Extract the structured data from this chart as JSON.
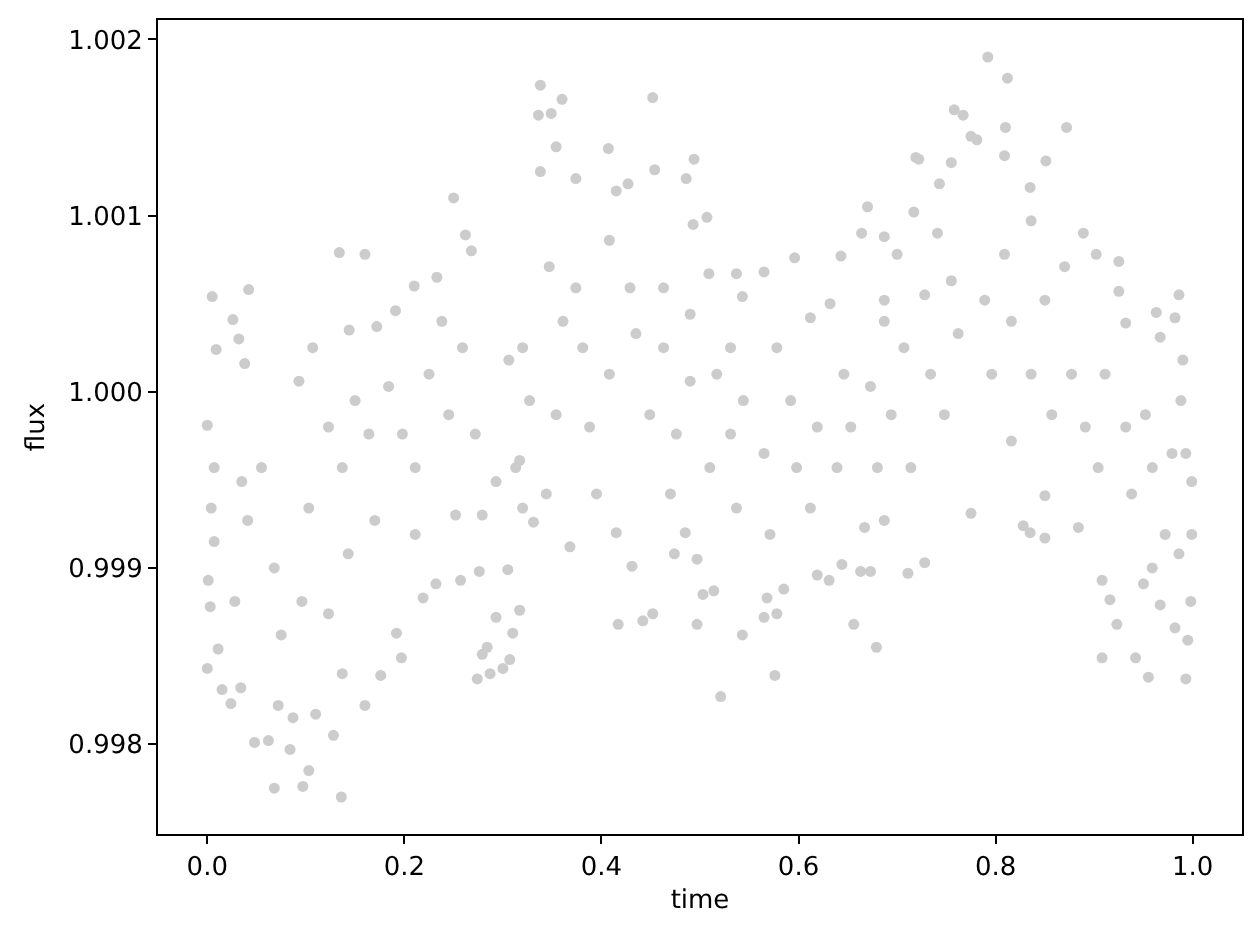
{
  "chart_data": {
    "type": "scatter",
    "xlabel": "time",
    "ylabel": "flux",
    "color": "#cccccc",
    "marker": "circle",
    "xlim": [
      -0.05,
      1.05
    ],
    "ylim": [
      0.99749,
      1.00211
    ],
    "xticks": [
      {
        "value": 0,
        "label": "0.0"
      },
      0.2,
      0.4,
      0.6,
      0.8,
      {
        "value": 1,
        "label": "1.0"
      }
    ],
    "yticks": [
      0.998,
      0.999,
      {
        "value": 1,
        "label": "1.000"
      },
      1.001,
      1.002
    ],
    "x": [
      0.005,
      0.042,
      0.026,
      0.009,
      0.032,
      0.038,
      0.0,
      0.134,
      0.16,
      0.25,
      0.262,
      0.268,
      0.144,
      0.107,
      0.093,
      0.191,
      0.21,
      0.233,
      0.172,
      0.136,
      0.068,
      0.097,
      0.103,
      0.048,
      0.062,
      0.084,
      0.128,
      0.024,
      0.015,
      0.034,
      0.0,
      0.011,
      0.072,
      0.087,
      0.11,
      0.16,
      0.176,
      0.197,
      0.192,
      0.137,
      0.274,
      0.287,
      0.3,
      0.307,
      0.279,
      0.284,
      0.31,
      0.293,
      0.219,
      0.232,
      0.257,
      0.276,
      0.305,
      0.007,
      0.004,
      0.007,
      0.001,
      0.003,
      0.035,
      0.041,
      0.028,
      0.055,
      0.068,
      0.075,
      0.096,
      0.103,
      0.123,
      0.137,
      0.143,
      0.123,
      0.15,
      0.164,
      0.17,
      0.184,
      0.198,
      0.211,
      0.211,
      0.225,
      0.238,
      0.245,
      0.252,
      0.259,
      0.272,
      0.279,
      0.293,
      0.306,
      0.317,
      0.32,
      0.338,
      0.336,
      0.349,
      0.36,
      0.354,
      0.452,
      0.407,
      0.454,
      0.494,
      0.486,
      0.507,
      0.493,
      0.338,
      0.374,
      0.415,
      0.427,
      0.67,
      0.664,
      0.687,
      0.643,
      0.596,
      0.565,
      0.537,
      0.509,
      0.543,
      0.463,
      0.612,
      0.632,
      0.578,
      0.531,
      0.521,
      0.576,
      0.543,
      0.417,
      0.442,
      0.452,
      0.497,
      0.565,
      0.578,
      0.656,
      0.679,
      0.503,
      0.514,
      0.568,
      0.585,
      0.317,
      0.368,
      0.415,
      0.431,
      0.474,
      0.485,
      0.497,
      0.47,
      0.395,
      0.331,
      0.344,
      0.619,
      0.631,
      0.663,
      0.673,
      0.644,
      0.667,
      0.32,
      0.327,
      0.313,
      0.347,
      0.361,
      0.354,
      0.381,
      0.374,
      0.388,
      0.408,
      0.408,
      0.429,
      0.435,
      0.449,
      0.463,
      0.476,
      0.49,
      0.49,
      0.51,
      0.517,
      0.531,
      0.537,
      0.544,
      0.565,
      0.571,
      0.592,
      0.598,
      0.612,
      0.619,
      0.639,
      0.646,
      0.653,
      0.673,
      0.68,
      0.687,
      0.792,
      0.812,
      0.758,
      0.767,
      0.775,
      0.781,
      0.719,
      0.722,
      0.81,
      0.872,
      0.851,
      0.809,
      0.755,
      0.743,
      0.835,
      0.717,
      0.889,
      0.902,
      0.925,
      0.925,
      0.986,
      0.982,
      0.963,
      0.967,
      0.932,
      0.99,
      0.988,
      0.7,
      0.741,
      0.836,
      0.87,
      0.993,
      0.955,
      0.942,
      0.908,
      0.923,
      0.711,
      0.728,
      0.775,
      0.828,
      0.835,
      0.85,
      0.908,
      0.916,
      0.967,
      0.982,
      0.995,
      0.998,
      0.95,
      0.687,
      0.85,
      0.884,
      0.999,
      0.999,
      0.993,
      0.959,
      0.687,
      0.707,
      0.694,
      0.728,
      0.734,
      0.714,
      0.755,
      0.762,
      0.748,
      0.789,
      0.796,
      0.809,
      0.816,
      0.816,
      0.836,
      0.85,
      0.857,
      0.877,
      0.891,
      0.904,
      0.911,
      0.932,
      0.938,
      0.952,
      0.959,
      0.972,
      0.979,
      0.986
    ],
    "values": [
      1.00054,
      1.00058,
      1.00041,
      1.00024,
      1.0003,
      1.00016,
      0.99981,
      1.00079,
      1.00078,
      1.0011,
      1.00089,
      1.0008,
      1.00035,
      1.00025,
      1.00006,
      1.00046,
      1.0006,
      1.00065,
      1.00037,
      0.9977,
      0.99775,
      0.99776,
      0.99785,
      0.99801,
      0.99802,
      0.99797,
      0.99805,
      0.99823,
      0.99831,
      0.99832,
      0.99843,
      0.99854,
      0.99822,
      0.99815,
      0.99817,
      0.99822,
      0.99839,
      0.99849,
      0.99863,
      0.9984,
      0.99837,
      0.9984,
      0.99843,
      0.99848,
      0.99851,
      0.99855,
      0.99863,
      0.99872,
      0.99883,
      0.99891,
      0.99893,
      0.99898,
      0.99899,
      0.99957,
      0.99934,
      0.99915,
      0.99893,
      0.99878,
      0.99949,
      0.99927,
      0.99881,
      0.99957,
      0.999,
      0.99862,
      0.99881,
      0.99934,
      0.9998,
      0.99957,
      0.99908,
      0.99874,
      0.99995,
      0.99976,
      0.99927,
      1.00003,
      0.99976,
      0.99957,
      0.99919,
      1.0001,
      1.0004,
      0.99987,
      0.9993,
      1.00025,
      0.99976,
      0.9993,
      0.99949,
      1.00018,
      0.99961,
      0.99934,
      1.00174,
      1.00157,
      1.00158,
      1.00166,
      1.00139,
      1.00167,
      1.00138,
      1.00126,
      1.00132,
      1.00121,
      1.00099,
      1.00095,
      1.00125,
      1.00121,
      1.00114,
      1.00118,
      1.00105,
      1.0009,
      1.00088,
      1.00077,
      1.00076,
      1.00068,
      1.00067,
      1.00067,
      1.00054,
      1.00059,
      1.00042,
      1.0005,
      1.00025,
      1.00025,
      0.99827,
      0.99839,
      0.99862,
      0.99868,
      0.9987,
      0.99874,
      0.99868,
      0.99872,
      0.99874,
      0.99868,
      0.99855,
      0.99885,
      0.99887,
      0.99883,
      0.99888,
      0.99876,
      0.99912,
      0.9992,
      0.99901,
      0.99908,
      0.9992,
      0.99905,
      0.99942,
      0.99942,
      0.99926,
      0.99942,
      0.99896,
      0.99893,
      0.99898,
      0.99898,
      0.99902,
      0.99923,
      1.00025,
      0.99995,
      0.99957,
      1.00071,
      1.0004,
      0.99987,
      1.00025,
      1.00059,
      0.9998,
      1.00086,
      1.0001,
      1.00059,
      1.00033,
      0.99987,
      1.00025,
      0.99976,
      1.00044,
      1.00006,
      0.99957,
      1.0001,
      0.99976,
      0.99934,
      0.99995,
      0.99965,
      0.99919,
      0.99995,
      0.99957,
      0.99934,
      0.9998,
      0.99957,
      1.0001,
      0.9998,
      1.00003,
      0.99957,
      1.0004,
      1.0019,
      1.00178,
      1.0016,
      1.00157,
      1.00145,
      1.00143,
      1.00133,
      1.00132,
      1.0015,
      1.0015,
      1.00131,
      1.00134,
      1.0013,
      1.00118,
      1.00116,
      1.00102,
      1.0009,
      1.00078,
      1.00074,
      1.00057,
      1.00055,
      1.00042,
      1.00045,
      1.00031,
      1.00039,
      1.00018,
      0.99995,
      1.00078,
      1.0009,
      1.00097,
      1.00071,
      0.99837,
      0.99838,
      0.99849,
      0.99849,
      0.99868,
      0.99897,
      0.99903,
      0.99931,
      0.99924,
      0.9992,
      0.99917,
      0.99893,
      0.99882,
      0.99879,
      0.99866,
      0.99859,
      0.99881,
      0.99891,
      0.99927,
      0.99941,
      0.99923,
      0.99919,
      0.99949,
      0.99965,
      0.999,
      1.00052,
      1.00025,
      0.99987,
      1.00055,
      1.0001,
      0.99957,
      1.00063,
      1.00033,
      0.99987,
      1.00052,
      1.0001,
      1.00078,
      1.0004,
      0.99972,
      1.0001,
      1.00052,
      0.99987,
      1.0001,
      0.9998,
      0.99957,
      1.0001,
      0.9998,
      0.99942,
      0.99987,
      0.99957,
      0.99919,
      0.99965,
      0.99908
    ]
  }
}
